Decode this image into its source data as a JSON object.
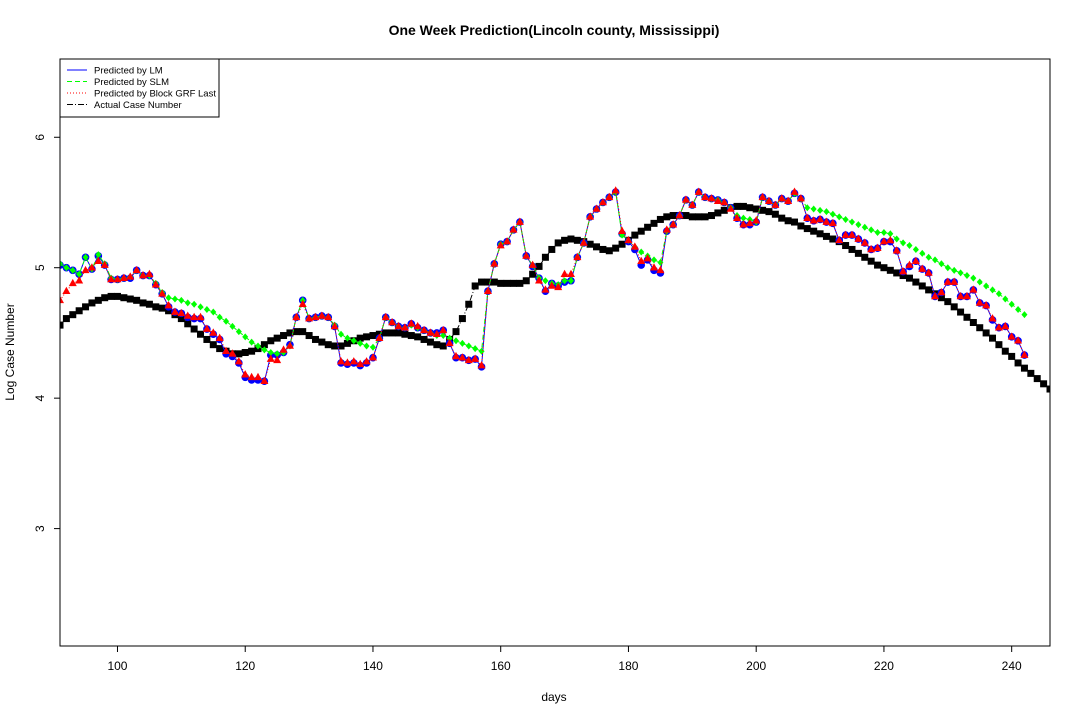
{
  "chart_data": {
    "type": "line",
    "title": "One Week Prediction(Lincoln county, Mississippi)",
    "xlabel": "days",
    "ylabel": "Log Case Number",
    "xlim": [
      91,
      246
    ],
    "ylim": [
      2.1,
      6.6
    ],
    "x_ticks": [
      100,
      120,
      140,
      160,
      180,
      200,
      220,
      240
    ],
    "y_ticks": [
      3,
      4,
      5,
      6
    ],
    "grid": false,
    "legend_position": "top-left",
    "x_start": 91,
    "series": [
      {
        "name": "Actual Case Number",
        "color": "#000000",
        "line_style": "dashdot",
        "marker": "square",
        "values": [
          4.56,
          4.61,
          4.64,
          4.67,
          4.7,
          4.73,
          4.75,
          4.77,
          4.78,
          4.78,
          4.77,
          4.76,
          4.75,
          4.73,
          4.72,
          4.7,
          4.69,
          4.67,
          4.64,
          4.61,
          4.57,
          4.53,
          4.49,
          4.45,
          4.41,
          4.38,
          4.36,
          4.34,
          4.34,
          4.35,
          4.36,
          4.38,
          4.41,
          4.44,
          4.46,
          4.48,
          4.5,
          4.51,
          4.51,
          4.48,
          4.45,
          4.43,
          4.41,
          4.4,
          4.4,
          4.42,
          4.44,
          4.46,
          4.47,
          4.48,
          4.49,
          4.5,
          4.5,
          4.5,
          4.49,
          4.48,
          4.47,
          4.45,
          4.43,
          4.41,
          4.4,
          4.45,
          4.51,
          4.61,
          4.72,
          4.86,
          4.89,
          4.89,
          4.89,
          4.88,
          4.88,
          4.88,
          4.88,
          4.9,
          4.95,
          5.01,
          5.08,
          5.14,
          5.19,
          5.21,
          5.22,
          5.21,
          5.2,
          5.18,
          5.16,
          5.14,
          5.13,
          5.15,
          5.18,
          5.21,
          5.25,
          5.28,
          5.31,
          5.34,
          5.37,
          5.39,
          5.4,
          5.4,
          5.4,
          5.39,
          5.39,
          5.39,
          5.4,
          5.42,
          5.44,
          5.46,
          5.47,
          5.47,
          5.46,
          5.45,
          5.44,
          5.43,
          5.41,
          5.38,
          5.36,
          5.35,
          5.32,
          5.3,
          5.28,
          5.26,
          5.24,
          5.22,
          5.2,
          5.17,
          5.14,
          5.11,
          5.08,
          5.05,
          5.02,
          5.0,
          4.98,
          4.96,
          4.94,
          4.92,
          4.89,
          4.86,
          4.83,
          4.8,
          4.77,
          4.74,
          4.7,
          4.66,
          4.62,
          4.58,
          4.54,
          4.5,
          4.46,
          4.41,
          4.36,
          4.32,
          4.27,
          4.23,
          4.19,
          4.15,
          4.11,
          4.07
        ]
      },
      {
        "name": "Predicted by LM",
        "color": "#0000ff",
        "line_style": "solid",
        "marker": "circle",
        "values": [
          5.02,
          5.0,
          4.98,
          4.95,
          5.08,
          4.99,
          5.09,
          5.02,
          4.91,
          4.91,
          4.92,
          4.92,
          4.98,
          4.94,
          4.94,
          4.87,
          4.8,
          4.7,
          4.66,
          4.65,
          4.62,
          4.61,
          4.61,
          4.53,
          4.49,
          4.45,
          4.34,
          4.32,
          4.27,
          4.16,
          4.14,
          4.14,
          4.13,
          4.33,
          4.33,
          4.35,
          4.41,
          4.62,
          4.75,
          4.61,
          4.62,
          4.63,
          4.62,
          4.55,
          4.27,
          4.26,
          4.27,
          4.25,
          4.27,
          4.31,
          4.46,
          4.62,
          4.58,
          4.55,
          4.54,
          4.57,
          4.54,
          4.52,
          4.5,
          4.5,
          4.52,
          4.42,
          4.31,
          4.31,
          4.29,
          4.3,
          4.24,
          4.82,
          5.03,
          5.18,
          5.2,
          5.29,
          5.35,
          5.09,
          5.01,
          4.92,
          4.82,
          4.88,
          4.86,
          4.89,
          4.9,
          5.08,
          5.19,
          5.39,
          5.45,
          5.5,
          5.54,
          5.58,
          5.26,
          5.2,
          5.14,
          5.02,
          5.06,
          4.98,
          4.96,
          5.28,
          5.33,
          5.4,
          5.52,
          5.48,
          5.58,
          5.54,
          5.53,
          5.52,
          5.5,
          5.46,
          5.38,
          5.33,
          5.33,
          5.35,
          5.54,
          5.51,
          5.48,
          5.53,
          5.51,
          5.57,
          5.53,
          5.38,
          5.36,
          5.37,
          5.35,
          5.34,
          5.21,
          5.25,
          5.25,
          5.22,
          5.19,
          5.14,
          5.15,
          5.2,
          5.2,
          5.13,
          4.97,
          5.01,
          5.05,
          4.99,
          4.96,
          4.78,
          4.81,
          4.89,
          4.89,
          4.78,
          4.78,
          4.83,
          4.73,
          4.71,
          4.6,
          4.54,
          4.55,
          4.47,
          4.44,
          4.33
        ]
      },
      {
        "name": "Predicted by SLM",
        "color": "#00ff00",
        "line_style": "dashed",
        "marker": "diamond",
        "values": [
          5.03,
          5.0,
          4.98,
          4.95,
          5.08,
          4.99,
          5.1,
          5.03,
          4.92,
          4.91,
          4.92,
          4.93,
          4.98,
          4.94,
          4.94,
          4.88,
          4.81,
          4.77,
          4.76,
          4.75,
          4.73,
          4.72,
          4.7,
          4.68,
          4.66,
          4.62,
          4.59,
          4.55,
          4.51,
          4.47,
          4.43,
          4.4,
          4.37,
          4.35,
          4.34,
          4.35,
          4.4,
          4.62,
          4.75,
          4.61,
          4.62,
          4.63,
          4.62,
          4.56,
          4.49,
          4.46,
          4.44,
          4.42,
          4.4,
          4.39,
          4.46,
          4.62,
          4.58,
          4.55,
          4.54,
          4.56,
          4.54,
          4.52,
          4.5,
          4.48,
          4.48,
          4.46,
          4.44,
          4.42,
          4.4,
          4.38,
          4.36,
          4.82,
          5.03,
          5.18,
          5.2,
          5.29,
          5.35,
          5.09,
          5.02,
          4.92,
          4.9,
          4.88,
          4.87,
          4.9,
          4.9,
          5.08,
          5.19,
          5.39,
          5.45,
          5.5,
          5.54,
          5.58,
          5.25,
          5.21,
          5.16,
          5.12,
          5.09,
          5.06,
          5.04,
          5.28,
          5.33,
          5.4,
          5.52,
          5.48,
          5.58,
          5.54,
          5.53,
          5.52,
          5.5,
          5.46,
          5.4,
          5.38,
          5.37,
          5.35,
          5.54,
          5.51,
          5.48,
          5.53,
          5.51,
          5.57,
          5.53,
          5.46,
          5.45,
          5.44,
          5.43,
          5.41,
          5.39,
          5.37,
          5.35,
          5.33,
          5.31,
          5.29,
          5.27,
          5.27,
          5.26,
          5.22,
          5.19,
          5.17,
          5.14,
          5.11,
          5.08,
          5.06,
          5.03,
          5.0,
          4.98,
          4.96,
          4.94,
          4.92,
          4.89,
          4.86,
          4.83,
          4.8,
          4.76,
          4.72,
          4.68,
          4.64
        ]
      },
      {
        "name": "Predicted by Block GRF Last",
        "color": "#ff0000",
        "line_style": "dotted",
        "marker": "triangle",
        "values": [
          4.75,
          4.82,
          4.88,
          4.9,
          4.98,
          5.0,
          5.05,
          5.02,
          4.91,
          4.91,
          4.92,
          4.93,
          4.98,
          4.94,
          4.95,
          4.87,
          4.8,
          4.71,
          4.66,
          4.65,
          4.63,
          4.62,
          4.62,
          4.53,
          4.5,
          4.46,
          4.36,
          4.34,
          4.28,
          4.18,
          4.16,
          4.16,
          4.13,
          4.3,
          4.29,
          4.37,
          4.4,
          4.62,
          4.72,
          4.61,
          4.62,
          4.63,
          4.62,
          4.55,
          4.28,
          4.27,
          4.28,
          4.26,
          4.28,
          4.31,
          4.46,
          4.62,
          4.58,
          4.55,
          4.54,
          4.57,
          4.55,
          4.52,
          4.5,
          4.49,
          4.52,
          4.42,
          4.32,
          4.31,
          4.29,
          4.3,
          4.25,
          4.82,
          5.03,
          5.17,
          5.2,
          5.29,
          5.35,
          5.09,
          5.02,
          4.9,
          4.83,
          4.86,
          4.85,
          4.95,
          4.95,
          5.08,
          5.19,
          5.39,
          5.45,
          5.5,
          5.54,
          5.59,
          5.28,
          5.21,
          5.16,
          5.05,
          5.07,
          5.0,
          4.98,
          5.29,
          5.33,
          5.4,
          5.52,
          5.48,
          5.58,
          5.54,
          5.53,
          5.51,
          5.5,
          5.45,
          5.38,
          5.33,
          5.34,
          5.36,
          5.54,
          5.51,
          5.48,
          5.53,
          5.51,
          5.58,
          5.53,
          5.38,
          5.36,
          5.37,
          5.35,
          5.34,
          5.21,
          5.25,
          5.25,
          5.22,
          5.19,
          5.14,
          5.15,
          5.2,
          5.21,
          5.13,
          4.97,
          5.02,
          5.05,
          4.99,
          4.96,
          4.78,
          4.81,
          4.89,
          4.89,
          4.78,
          4.78,
          4.83,
          4.73,
          4.71,
          4.61,
          4.54,
          4.55,
          4.47,
          4.44,
          4.33
        ]
      }
    ],
    "legend_entries": [
      "Predicted by LM",
      "Predicted by SLM",
      "Predicted by Block GRF Last",
      "Actual Case Number"
    ]
  }
}
